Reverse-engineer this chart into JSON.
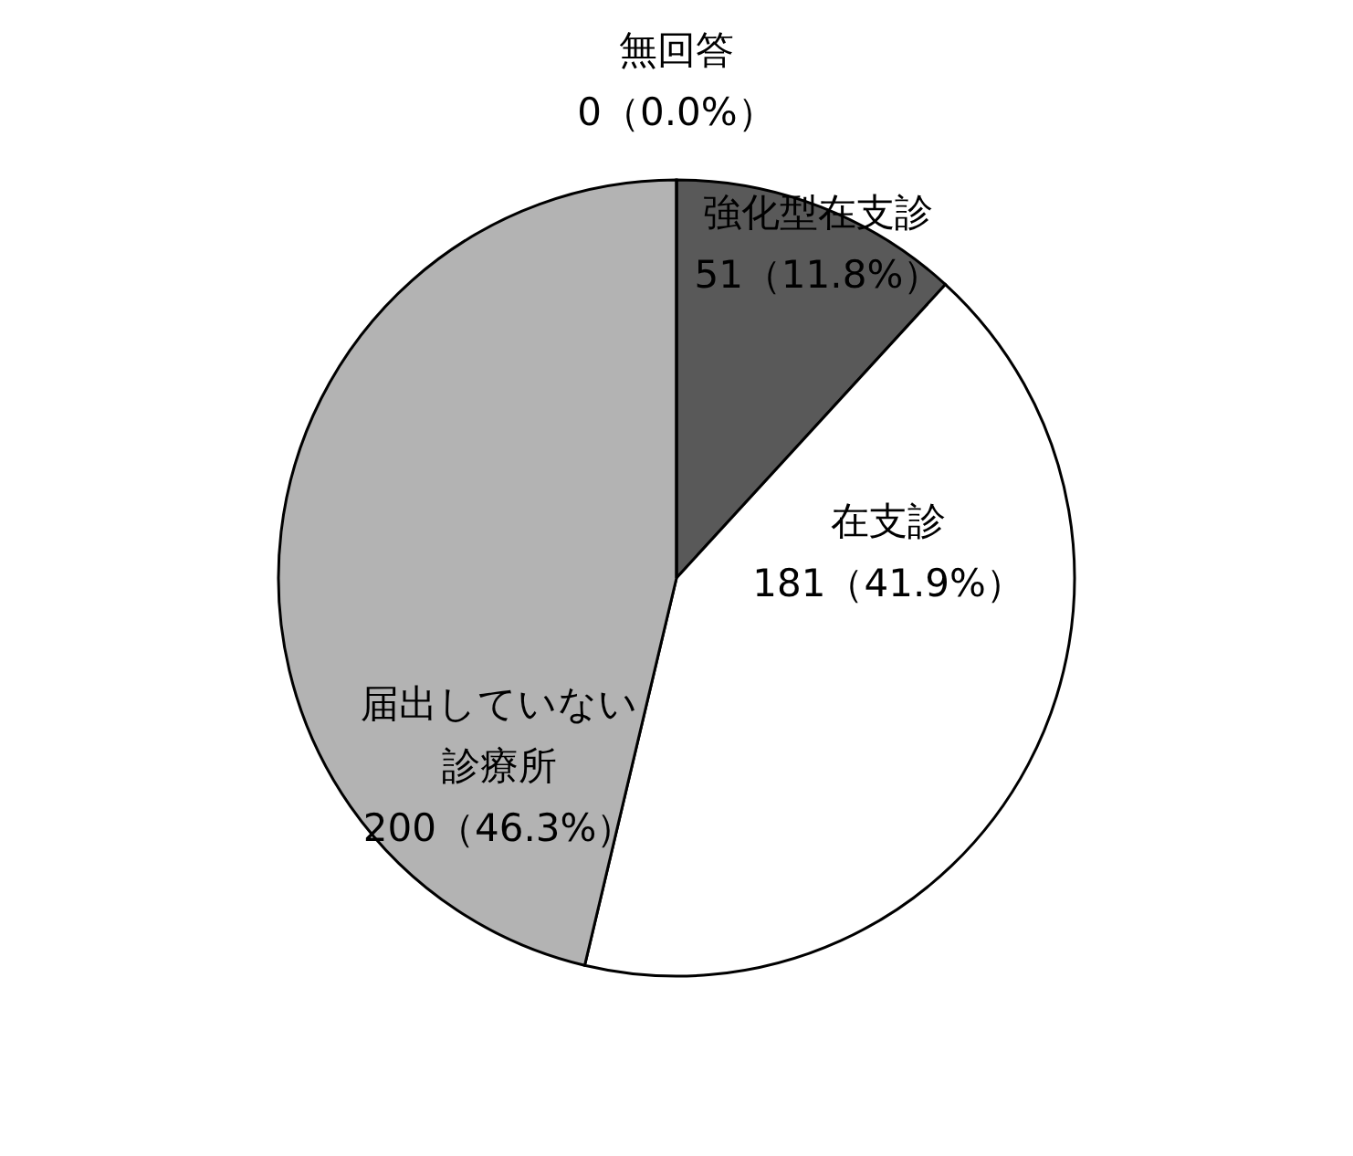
{
  "chart_data": {
    "type": "pie",
    "categories": [
      "強化型在支診",
      "在支診",
      "届出していない診療所",
      "無回答"
    ],
    "values": [
      51,
      181,
      200,
      0
    ],
    "colors": [
      "#595959",
      "#ffffff",
      "#b3b3b3",
      "#808080"
    ],
    "value_labels": [
      "51（11.8%）",
      "181（41.9%）",
      "200（46.3%）",
      "0（0.0%）"
    ],
    "legend": false
  }
}
